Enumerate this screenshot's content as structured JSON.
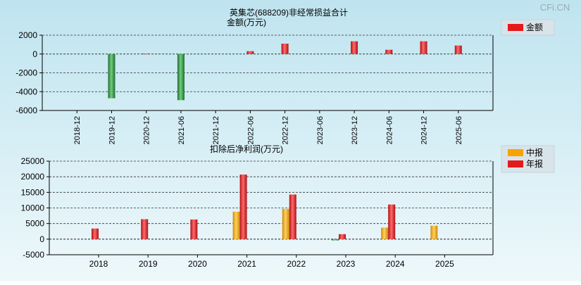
{
  "watermark": "CFi.CN",
  "colors": {
    "positive": "#e41a1c",
    "negative": "#2e8b3e",
    "interim": "#f5a400",
    "annual": "#e41a1c"
  },
  "chart_data": [
    {
      "type": "bar",
      "title": "英集芯(688209)非经常损益合计",
      "ylabel": "金额(万元)",
      "legend": [
        "金额"
      ],
      "ylim": [
        -6000,
        2000
      ],
      "yticks": [
        2000,
        0,
        -2000,
        -4000,
        -6000
      ],
      "categories": [
        "2018-12",
        "2019-12",
        "2020-12",
        "2021-06",
        "2021-12",
        "2022-06",
        "2022-12",
        "2023-06",
        "2023-12",
        "2024-06",
        "2024-12",
        "2025-06"
      ],
      "values": [
        0,
        -4700,
        50,
        -4900,
        0,
        300,
        1100,
        0,
        1350,
        450,
        1350,
        900
      ]
    },
    {
      "type": "bar",
      "title": "扣除后净利润(万元)",
      "legend": [
        "中报",
        "年报"
      ],
      "ylim": [
        -5000,
        25000
      ],
      "yticks": [
        25000,
        20000,
        15000,
        10000,
        5000,
        0,
        -5000
      ],
      "categories": [
        "2018",
        "2019",
        "2020",
        "2021",
        "2022",
        "2023",
        "2024",
        "2025"
      ],
      "series": [
        {
          "name": "中报",
          "values": [
            null,
            null,
            null,
            8800,
            9700,
            -400,
            3700,
            4300
          ]
        },
        {
          "name": "年报",
          "values": [
            3400,
            6400,
            6300,
            20700,
            14300,
            1600,
            11100,
            null
          ]
        }
      ]
    }
  ]
}
